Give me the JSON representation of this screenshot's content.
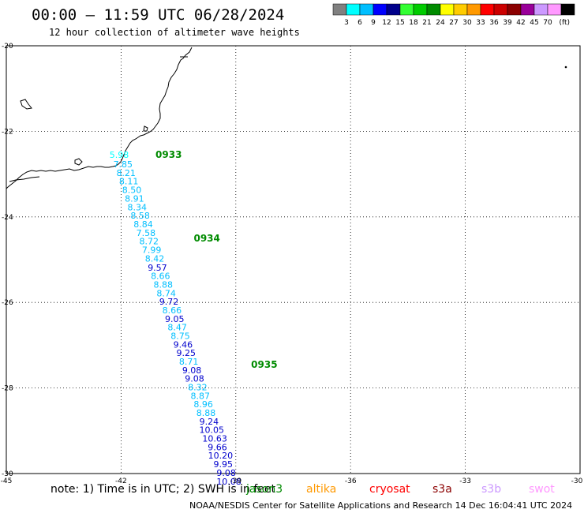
{
  "title": "00:00 – 11:59 UTC 06/28/2024",
  "subtitle": "12 hour collection of altimeter wave heights",
  "legend": {
    "bins": [
      {
        "color": "#808080",
        "label": ""
      },
      {
        "color": "#00ffff",
        "label": "3"
      },
      {
        "color": "#00bfff",
        "label": "6"
      },
      {
        "color": "#0000ff",
        "label": "9"
      },
      {
        "color": "#00008b",
        "label": "12"
      },
      {
        "color": "#33ff33",
        "label": "15"
      },
      {
        "color": "#00cc00",
        "label": "18"
      },
      {
        "color": "#008b00",
        "label": "21"
      },
      {
        "color": "#ffff00",
        "label": "24"
      },
      {
        "color": "#ffcc00",
        "label": "27"
      },
      {
        "color": "#ff9900",
        "label": "30"
      },
      {
        "color": "#ff0000",
        "label": "33"
      },
      {
        "color": "#cc0000",
        "label": "36"
      },
      {
        "color": "#8b0000",
        "label": "39"
      },
      {
        "color": "#990099",
        "label": "42"
      },
      {
        "color": "#cc99ff",
        "label": "45"
      },
      {
        "color": "#ff99ff",
        "label": "70"
      },
      {
        "color": "#000000",
        "label": ""
      }
    ],
    "unit": "(ft)"
  },
  "axes": {
    "lon_ticks": [
      "-45",
      "-42",
      "-39",
      "-36",
      "-33",
      "-30"
    ],
    "lat_ticks": [
      "-20",
      "-22",
      "-24",
      "-26",
      "-28",
      "-30"
    ],
    "lon_range": [
      -45,
      -30
    ],
    "lat_range": [
      -30,
      -20
    ]
  },
  "time_labels": [
    {
      "text": "0933",
      "lon": -41.1,
      "lat": -22.55
    },
    {
      "text": "0934",
      "lon": -40.1,
      "lat": -24.5
    },
    {
      "text": "0935",
      "lon": -38.6,
      "lat": -27.45
    }
  ],
  "chart_data": {
    "type": "scatter",
    "title": "00:00 – 11:59 UTC 06/28/2024",
    "subtitle": "12 hour collection of altimeter wave heights",
    "xlabel": "",
    "ylabel": "",
    "xlim": [
      -45,
      -30
    ],
    "ylim": [
      -30,
      -20
    ],
    "grid": true,
    "points": [
      {
        "lon": -42.05,
        "lat": -22.55,
        "swh": 5.98
      },
      {
        "lon": -41.95,
        "lat": -22.77,
        "swh": 7.85
      },
      {
        "lon": -41.87,
        "lat": -22.97,
        "swh": 8.21
      },
      {
        "lon": -41.8,
        "lat": -23.16,
        "swh": 8.11
      },
      {
        "lon": -41.72,
        "lat": -23.37,
        "swh": 8.5
      },
      {
        "lon": -41.65,
        "lat": -23.57,
        "swh": 8.91
      },
      {
        "lon": -41.58,
        "lat": -23.77,
        "swh": 8.34
      },
      {
        "lon": -41.5,
        "lat": -23.97,
        "swh": 8.58
      },
      {
        "lon": -41.42,
        "lat": -24.17,
        "swh": 8.84
      },
      {
        "lon": -41.35,
        "lat": -24.37,
        "swh": 7.58
      },
      {
        "lon": -41.27,
        "lat": -24.57,
        "swh": 8.72
      },
      {
        "lon": -41.2,
        "lat": -24.77,
        "swh": 7.99
      },
      {
        "lon": -41.12,
        "lat": -24.97,
        "swh": 8.42
      },
      {
        "lon": -41.05,
        "lat": -25.18,
        "swh": 9.57
      },
      {
        "lon": -40.97,
        "lat": -25.38,
        "swh": 8.66
      },
      {
        "lon": -40.9,
        "lat": -25.58,
        "swh": 8.88
      },
      {
        "lon": -40.82,
        "lat": -25.78,
        "swh": 8.74
      },
      {
        "lon": -40.75,
        "lat": -25.98,
        "swh": 9.72
      },
      {
        "lon": -40.67,
        "lat": -26.18,
        "swh": 8.66
      },
      {
        "lon": -40.6,
        "lat": -26.38,
        "swh": 9.05
      },
      {
        "lon": -40.53,
        "lat": -26.58,
        "swh": 8.47
      },
      {
        "lon": -40.45,
        "lat": -26.78,
        "swh": 8.75
      },
      {
        "lon": -40.38,
        "lat": -26.98,
        "swh": 9.46
      },
      {
        "lon": -40.3,
        "lat": -27.18,
        "swh": 9.25
      },
      {
        "lon": -40.23,
        "lat": -27.38,
        "swh": 8.71
      },
      {
        "lon": -40.15,
        "lat": -27.58,
        "swh": 9.08
      },
      {
        "lon": -40.08,
        "lat": -27.78,
        "swh": 9.08
      },
      {
        "lon": -40.0,
        "lat": -27.98,
        "swh": 8.32
      },
      {
        "lon": -39.93,
        "lat": -28.18,
        "swh": 8.87
      },
      {
        "lon": -39.85,
        "lat": -28.38,
        "swh": 8.96
      },
      {
        "lon": -39.78,
        "lat": -28.58,
        "swh": 8.88
      },
      {
        "lon": -39.7,
        "lat": -28.78,
        "swh": 9.24
      },
      {
        "lon": -39.63,
        "lat": -28.98,
        "swh": 10.05
      },
      {
        "lon": -39.55,
        "lat": -29.18,
        "swh": 10.63
      },
      {
        "lon": -39.48,
        "lat": -29.38,
        "swh": 9.66
      },
      {
        "lon": -39.4,
        "lat": -29.58,
        "swh": 10.2
      },
      {
        "lon": -39.33,
        "lat": -29.78,
        "swh": 9.95
      },
      {
        "lon": -39.25,
        "lat": -29.98,
        "swh": 9.08
      },
      {
        "lon": -39.18,
        "lat": -30.18,
        "swh": 10.08
      }
    ]
  },
  "note": "note: 1) Time is in UTC; 2) SWH is in feet",
  "satellites": [
    {
      "name": "jason3",
      "color": "#008b00"
    },
    {
      "name": "altika",
      "color": "#ff9900"
    },
    {
      "name": "cryosat",
      "color": "#ff0000"
    },
    {
      "name": "s3a",
      "color": "#8b0000"
    },
    {
      "name": "s3b",
      "color": "#cc99ff"
    },
    {
      "name": "swot",
      "color": "#ff99ff"
    }
  ],
  "credit": "NOAA/NESDIS Center for Satellite Applications and Research   14 Dec 16:04:41 UTC 2024"
}
